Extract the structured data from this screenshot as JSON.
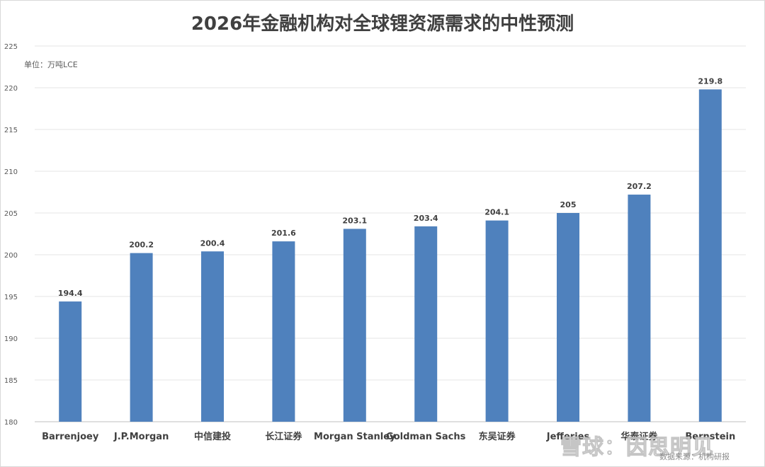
{
  "chart_data": {
    "type": "bar",
    "title": "2026年金融机构对全球锂资源需求的中性预测",
    "unit_label": "单位：万吨LCE",
    "ylim": [
      180,
      225
    ],
    "y_ticks": [
      180,
      185,
      190,
      195,
      200,
      205,
      210,
      215,
      220,
      225
    ],
    "grid": true,
    "categories": [
      "Barrenjoey",
      "J.P.Morgan",
      "中信建投",
      "长江证券",
      "Morgan Stanley",
      "Goldman Sachs",
      "东吴证券",
      "Jefferies",
      "华泰证券",
      "Bernstein"
    ],
    "values": [
      194.4,
      200.2,
      200.4,
      201.6,
      203.1,
      203.4,
      204.1,
      205,
      207.2,
      219.8
    ],
    "bar_color": "#4f81bd"
  },
  "source": "数据来源：机构研报",
  "watermark": "雪球：因思明见"
}
